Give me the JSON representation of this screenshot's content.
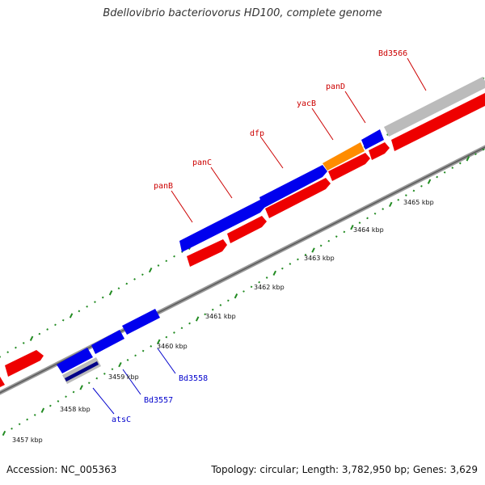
{
  "title": "Bdellovibrio bacteriovorus HD100, complete genome",
  "footer": {
    "accession": "Accession: NC_005363",
    "summary": "Topology: circular; Length: 3,782,950 bp; Genes: 3,629"
  },
  "colors": {
    "forward_cds": "#0000ee",
    "reverse_cds": "#ee0000",
    "trna": "#ff8c00",
    "other": "#bbbbbb",
    "labels_forward": "#cc0000",
    "labels_reverse": "#0000cc",
    "ticks": "#228b22"
  },
  "scale": {
    "unit": "kbp",
    "tick_labels": [
      "3457 kbp",
      "3458 kbp",
      "3459 kbp",
      "3460 kbp",
      "3461 kbp",
      "3462 kbp",
      "3463 kbp",
      "3464 kbp",
      "3465 kbp"
    ]
  },
  "gene_labels": {
    "forward": [
      "panB",
      "panC",
      "dfp",
      "yacB",
      "panD",
      "Bd3566"
    ],
    "reverse": [
      "atsC",
      "Bd3557",
      "Bd3558"
    ]
  }
}
